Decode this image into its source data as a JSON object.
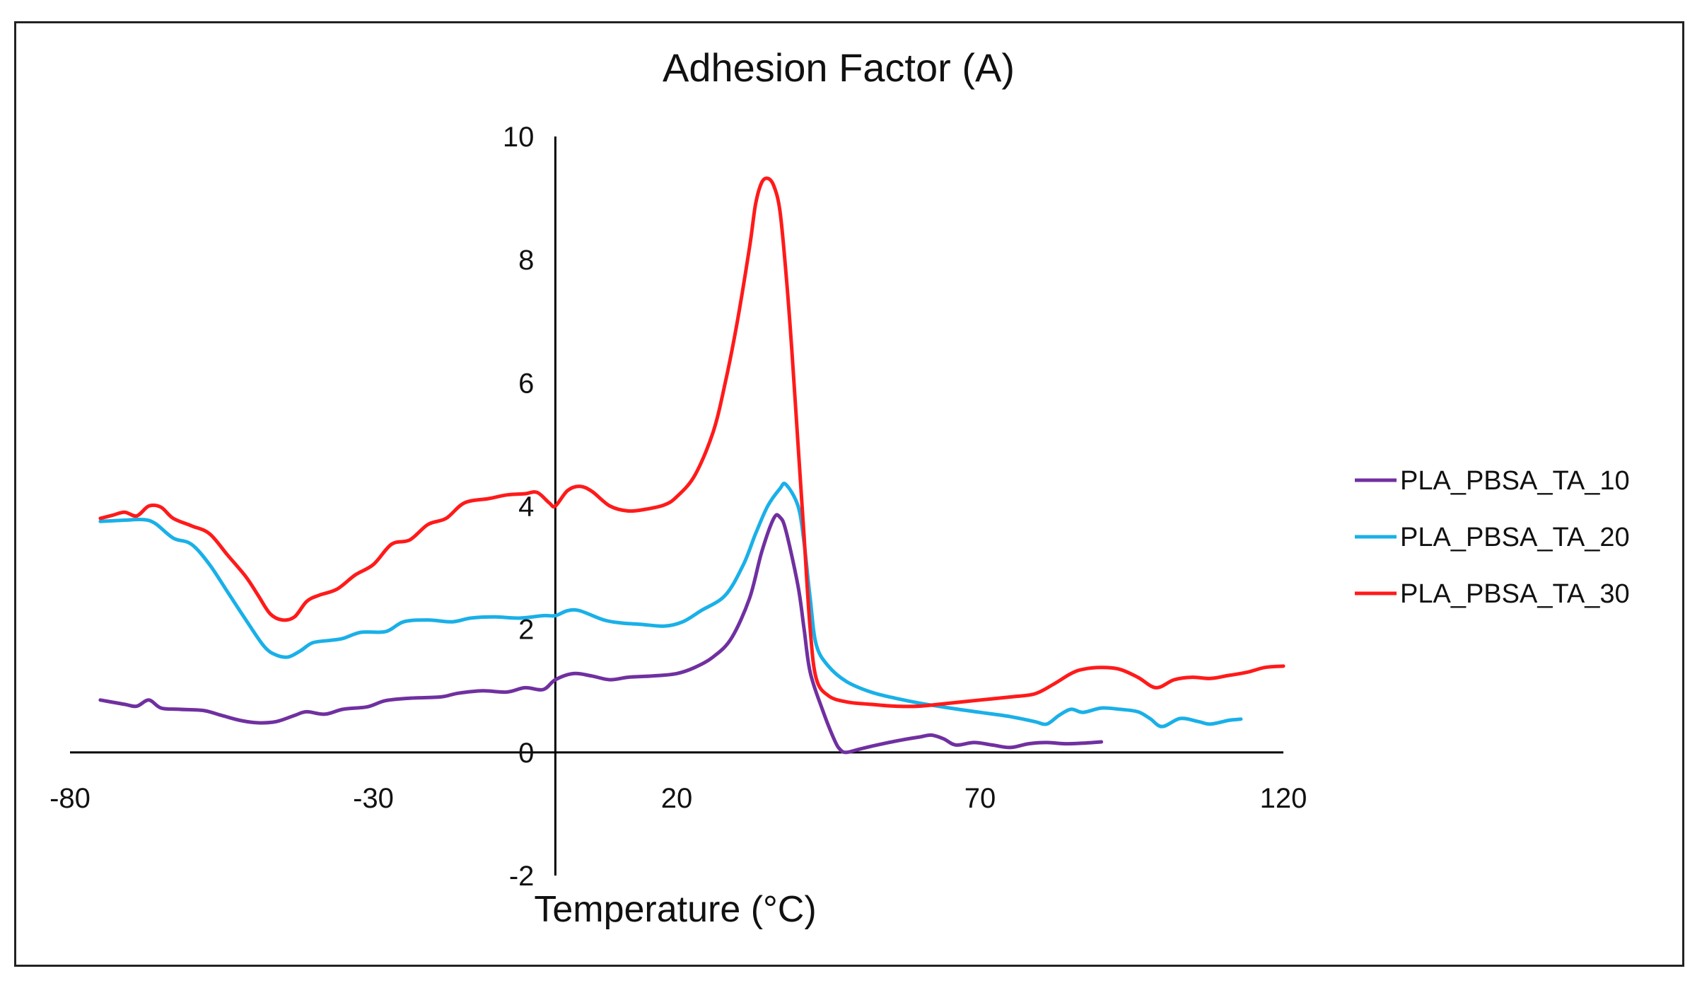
{
  "chart_data": {
    "type": "line",
    "title": "Adhesion Factor (A)",
    "xlabel": "Temperature (°C)",
    "ylabel": "",
    "xlim": [
      -80,
      120
    ],
    "ylim": [
      -2,
      10
    ],
    "xticks": [
      -80,
      -30,
      20,
      70,
      120
    ],
    "yticks": [
      -2,
      0,
      2,
      4,
      6,
      8,
      10
    ],
    "xtick_labels": [
      "-80",
      "-30",
      "20",
      "70",
      "120"
    ],
    "ytick_labels": [
      "-2",
      "0",
      "2",
      "4",
      "6",
      "8",
      "10"
    ],
    "legend_position": "right",
    "series": [
      {
        "name": "PLA_PBSA_TA_10",
        "color": "#7030a0",
        "points": [
          [
            -75,
            0.85
          ],
          [
            -71,
            0.78
          ],
          [
            -69,
            0.75
          ],
          [
            -67,
            0.85
          ],
          [
            -65,
            0.72
          ],
          [
            -62,
            0.7
          ],
          [
            -58,
            0.68
          ],
          [
            -55,
            0.6
          ],
          [
            -52,
            0.52
          ],
          [
            -49,
            0.48
          ],
          [
            -46,
            0.5
          ],
          [
            -43,
            0.6
          ],
          [
            -41,
            0.66
          ],
          [
            -38,
            0.62
          ],
          [
            -35,
            0.7
          ],
          [
            -31,
            0.74
          ],
          [
            -28,
            0.84
          ],
          [
            -24,
            0.88
          ],
          [
            -19,
            0.9
          ],
          [
            -16,
            0.96
          ],
          [
            -12,
            1.0
          ],
          [
            -8,
            0.98
          ],
          [
            -5,
            1.05
          ],
          [
            -2,
            1.02
          ],
          [
            0,
            1.18
          ],
          [
            3,
            1.28
          ],
          [
            6,
            1.24
          ],
          [
            9,
            1.18
          ],
          [
            12,
            1.22
          ],
          [
            16,
            1.24
          ],
          [
            20,
            1.28
          ],
          [
            23,
            1.38
          ],
          [
            26,
            1.55
          ],
          [
            29,
            1.85
          ],
          [
            32,
            2.5
          ],
          [
            34,
            3.25
          ],
          [
            36,
            3.8
          ],
          [
            37,
            3.82
          ],
          [
            38,
            3.6
          ],
          [
            40,
            2.7
          ],
          [
            41,
            2.0
          ],
          [
            42,
            1.3
          ],
          [
            44,
            0.7
          ],
          [
            46,
            0.2
          ],
          [
            47,
            0.04
          ],
          [
            48,
            0.0
          ],
          [
            50,
            0.05
          ],
          [
            53,
            0.12
          ],
          [
            57,
            0.2
          ],
          [
            60,
            0.25
          ],
          [
            62,
            0.28
          ],
          [
            64,
            0.22
          ],
          [
            66,
            0.12
          ],
          [
            69,
            0.16
          ],
          [
            72,
            0.12
          ],
          [
            75,
            0.08
          ],
          [
            78,
            0.14
          ],
          [
            81,
            0.16
          ],
          [
            84,
            0.14
          ],
          [
            87,
            0.15
          ],
          [
            90,
            0.17
          ]
        ]
      },
      {
        "name": "PLA_PBSA_TA_20",
        "color": "#1ab0e8",
        "points": [
          [
            -75,
            3.75
          ],
          [
            -71,
            3.77
          ],
          [
            -68,
            3.78
          ],
          [
            -66,
            3.72
          ],
          [
            -63,
            3.48
          ],
          [
            -60,
            3.38
          ],
          [
            -57,
            3.05
          ],
          [
            -54,
            2.6
          ],
          [
            -51,
            2.15
          ],
          [
            -48,
            1.72
          ],
          [
            -46,
            1.58
          ],
          [
            -44,
            1.55
          ],
          [
            -42,
            1.65
          ],
          [
            -40,
            1.78
          ],
          [
            -37,
            1.82
          ],
          [
            -35,
            1.85
          ],
          [
            -32,
            1.95
          ],
          [
            -28,
            1.96
          ],
          [
            -25,
            2.12
          ],
          [
            -21,
            2.15
          ],
          [
            -17,
            2.12
          ],
          [
            -14,
            2.18
          ],
          [
            -10,
            2.2
          ],
          [
            -6,
            2.18
          ],
          [
            -2,
            2.22
          ],
          [
            0,
            2.22
          ],
          [
            2,
            2.3
          ],
          [
            4,
            2.3
          ],
          [
            8,
            2.15
          ],
          [
            11,
            2.1
          ],
          [
            14,
            2.08
          ],
          [
            18,
            2.05
          ],
          [
            21,
            2.12
          ],
          [
            24,
            2.3
          ],
          [
            28,
            2.55
          ],
          [
            31,
            3.05
          ],
          [
            33,
            3.55
          ],
          [
            35,
            4.0
          ],
          [
            37,
            4.28
          ],
          [
            38,
            4.35
          ],
          [
            40,
            4.0
          ],
          [
            41,
            3.4
          ],
          [
            42,
            2.5
          ],
          [
            43,
            1.75
          ],
          [
            45,
            1.4
          ],
          [
            48,
            1.15
          ],
          [
            52,
            0.98
          ],
          [
            56,
            0.88
          ],
          [
            60,
            0.8
          ],
          [
            65,
            0.72
          ],
          [
            70,
            0.65
          ],
          [
            75,
            0.58
          ],
          [
            79,
            0.5
          ],
          [
            81,
            0.46
          ],
          [
            83,
            0.6
          ],
          [
            85,
            0.7
          ],
          [
            87,
            0.65
          ],
          [
            90,
            0.72
          ],
          [
            93,
            0.7
          ],
          [
            96,
            0.66
          ],
          [
            98,
            0.55
          ],
          [
            100,
            0.42
          ],
          [
            103,
            0.55
          ],
          [
            106,
            0.5
          ],
          [
            108,
            0.46
          ],
          [
            111,
            0.52
          ],
          [
            113,
            0.54
          ]
        ]
      },
      {
        "name": "PLA_PBSA_TA_30",
        "color": "#ff1a1a",
        "points": [
          [
            -75,
            3.8
          ],
          [
            -73,
            3.85
          ],
          [
            -71,
            3.9
          ],
          [
            -69,
            3.84
          ],
          [
            -67,
            4.0
          ],
          [
            -65,
            3.98
          ],
          [
            -63,
            3.8
          ],
          [
            -60,
            3.68
          ],
          [
            -57,
            3.55
          ],
          [
            -54,
            3.2
          ],
          [
            -51,
            2.85
          ],
          [
            -49,
            2.55
          ],
          [
            -47,
            2.25
          ],
          [
            -45,
            2.15
          ],
          [
            -43,
            2.2
          ],
          [
            -41,
            2.45
          ],
          [
            -39,
            2.55
          ],
          [
            -36,
            2.65
          ],
          [
            -33,
            2.88
          ],
          [
            -30,
            3.05
          ],
          [
            -27,
            3.38
          ],
          [
            -24,
            3.45
          ],
          [
            -21,
            3.7
          ],
          [
            -18,
            3.8
          ],
          [
            -15,
            4.05
          ],
          [
            -11,
            4.12
          ],
          [
            -8,
            4.18
          ],
          [
            -5,
            4.2
          ],
          [
            -3,
            4.22
          ],
          [
            -1,
            4.05
          ],
          [
            0,
            4.0
          ],
          [
            2,
            4.25
          ],
          [
            4,
            4.32
          ],
          [
            6,
            4.24
          ],
          [
            9,
            4.0
          ],
          [
            12,
            3.92
          ],
          [
            15,
            3.95
          ],
          [
            18,
            4.02
          ],
          [
            20,
            4.15
          ],
          [
            23,
            4.5
          ],
          [
            26,
            5.2
          ],
          [
            28,
            6.0
          ],
          [
            30,
            7.0
          ],
          [
            32,
            8.2
          ],
          [
            33,
            8.9
          ],
          [
            34,
            9.25
          ],
          [
            35,
            9.32
          ],
          [
            36,
            9.2
          ],
          [
            37,
            8.8
          ],
          [
            38,
            7.8
          ],
          [
            39,
            6.5
          ],
          [
            40,
            5.0
          ],
          [
            41,
            3.5
          ],
          [
            42,
            2.0
          ],
          [
            43,
            1.2
          ],
          [
            45,
            0.92
          ],
          [
            48,
            0.82
          ],
          [
            52,
            0.78
          ],
          [
            56,
            0.75
          ],
          [
            60,
            0.75
          ],
          [
            65,
            0.8
          ],
          [
            70,
            0.85
          ],
          [
            75,
            0.9
          ],
          [
            79,
            0.95
          ],
          [
            82,
            1.1
          ],
          [
            85,
            1.28
          ],
          [
            87,
            1.35
          ],
          [
            90,
            1.38
          ],
          [
            93,
            1.35
          ],
          [
            96,
            1.22
          ],
          [
            99,
            1.05
          ],
          [
            102,
            1.18
          ],
          [
            105,
            1.22
          ],
          [
            108,
            1.2
          ],
          [
            111,
            1.25
          ],
          [
            114,
            1.3
          ],
          [
            117,
            1.38
          ],
          [
            120,
            1.4
          ]
        ]
      }
    ]
  }
}
